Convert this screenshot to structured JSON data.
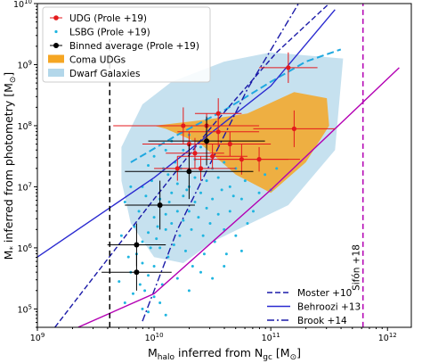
{
  "chart_data": {
    "type": "scatter",
    "xlabel": "M_halo inferred from N_gc [M⊙]",
    "ylabel": "M* inferred from photometry [M⊙]",
    "xscale": "log",
    "yscale": "log",
    "xlim": [
      1000000000.0,
      1600000000000.0
    ],
    "ylim": [
      50000.0,
      10000000000.0
    ],
    "x_ticks": [
      {
        "value": 1000000000.0,
        "base": "10",
        "exp": "9"
      },
      {
        "value": 10000000000.0,
        "base": "10",
        "exp": "10"
      },
      {
        "value": 100000000000.0,
        "base": "10",
        "exp": "11"
      },
      {
        "value": 1000000000000.0,
        "base": "10",
        "exp": "12"
      }
    ],
    "y_ticks": [
      {
        "value": 100000.0,
        "base": "10",
        "exp": "5"
      },
      {
        "value": 1000000.0,
        "base": "10",
        "exp": "6"
      },
      {
        "value": 10000000.0,
        "base": "10",
        "exp": "7"
      },
      {
        "value": 100000000.0,
        "base": "10",
        "exp": "8"
      },
      {
        "value": 1000000000.0,
        "base": "10",
        "exp": "9"
      },
      {
        "value": 10000000000.0,
        "base": "10",
        "exp": "10"
      }
    ],
    "legend_upper": {
      "position": "upper-left",
      "entries": [
        "UDG (Prole +19)",
        "LSBG (Prole +19)",
        "Binned average (Prole +19)",
        "Coma UDGs",
        "Dwarf Galaxies"
      ]
    },
    "legend_lower": {
      "position": "lower-right",
      "entries": [
        "Moster +10",
        "Behroozi +13",
        "Brook +14"
      ]
    },
    "annotation": "Sifón +18",
    "colors": {
      "udg": "#e41a1c",
      "lsbg": "#1fb5e0",
      "binned": "#000000",
      "coma": "#f5a623",
      "dwarf": "#b3d7ea",
      "lsbg_trend": "#1fa8e0",
      "relations": "#1a1aa8",
      "magenta": "#b300b3"
    },
    "dwarf_region": [
      [
        9.72,
        7.65
      ],
      [
        9.9,
        8.35
      ],
      [
        10.15,
        8.72
      ],
      [
        10.6,
        9.05
      ],
      [
        11.0,
        9.2
      ],
      [
        11.62,
        9.1
      ],
      [
        11.55,
        7.6
      ],
      [
        11.15,
        6.7
      ],
      [
        10.5,
        6.1
      ],
      [
        10.25,
        5.75
      ],
      [
        10.0,
        5.85
      ],
      [
        9.8,
        6.4
      ],
      [
        9.72,
        7.1
      ]
    ],
    "coma_region": [
      [
        10.0,
        8.0
      ],
      [
        10.45,
        8.1
      ],
      [
        10.8,
        8.2
      ],
      [
        11.2,
        8.55
      ],
      [
        11.48,
        8.45
      ],
      [
        11.5,
        8.0
      ],
      [
        11.3,
        7.4
      ],
      [
        11.0,
        6.9
      ],
      [
        10.7,
        7.2
      ],
      [
        10.4,
        7.7
      ],
      [
        10.1,
        7.95
      ]
    ],
    "lsbg_trend": [
      [
        9.8,
        7.4
      ],
      [
        10.2,
        7.85
      ],
      [
        10.6,
        8.25
      ],
      [
        11.0,
        8.72
      ],
      [
        11.3,
        9.05
      ],
      [
        11.6,
        9.25
      ]
    ],
    "relations": [
      {
        "name": "Moster +10",
        "style": "dashed",
        "color": "#1a1aa8",
        "points": [
          [
            9.15,
            4.7
          ],
          [
            10.0,
            6.8
          ],
          [
            10.5,
            8.0
          ],
          [
            11.05,
            9.2
          ],
          [
            11.5,
            10.0
          ]
        ]
      },
      {
        "name": "Behroozi +13",
        "style": "solid",
        "color": "#2a2ad0",
        "points": [
          [
            9.0,
            5.85
          ],
          [
            10.0,
            7.15
          ],
          [
            11.0,
            8.65
          ],
          [
            11.55,
            9.9
          ]
        ]
      },
      {
        "name": "Brook +14",
        "style": "dashdot",
        "color": "#1a1aa8",
        "points": [
          [
            9.9,
            4.8
          ],
          [
            10.2,
            6.3
          ],
          [
            10.8,
            8.6
          ],
          [
            11.3,
            10.2
          ]
        ]
      },
      {
        "name": "magenta",
        "style": "solid",
        "color": "#b300b3",
        "points": [
          [
            9.35,
            4.7
          ],
          [
            10.0,
            5.25
          ],
          [
            11.0,
            6.95
          ],
          [
            12.1,
            8.95
          ]
        ]
      }
    ],
    "vlines": [
      {
        "x": 9.62,
        "color": "#000000",
        "style": "dashed",
        "ymin": 4.7,
        "ymax": 9.4
      },
      {
        "x": 11.79,
        "color": "#b300b3",
        "style": "dashed",
        "ymin": 4.7,
        "ymax": 10.0
      }
    ],
    "udg_points": [
      {
        "x": 11.15,
        "y": 8.95,
        "xerr": 0.25,
        "yerr": 0.25
      },
      {
        "x": 10.25,
        "y": 8.0,
        "xerr": 0.6,
        "yerr": 0.3
      },
      {
        "x": 10.45,
        "y": 8.0,
        "xerr": 0.45,
        "yerr": 0.2
      },
      {
        "x": 10.55,
        "y": 7.9,
        "xerr": 0.35,
        "yerr": 0.25
      },
      {
        "x": 10.3,
        "y": 7.7,
        "xerr": 0.4,
        "yerr": 0.2
      },
      {
        "x": 10.65,
        "y": 7.7,
        "xerr": 0.35,
        "yerr": 0.2
      },
      {
        "x": 10.5,
        "y": 7.5,
        "xerr": 0.3,
        "yerr": 0.2
      },
      {
        "x": 10.4,
        "y": 7.3,
        "xerr": 0.3,
        "yerr": 0.2
      },
      {
        "x": 10.75,
        "y": 7.45,
        "xerr": 0.4,
        "yerr": 0.25
      },
      {
        "x": 10.9,
        "y": 7.45,
        "xerr": 0.35,
        "yerr": 0.2
      },
      {
        "x": 11.2,
        "y": 7.95,
        "xerr": 0.35,
        "yerr": 0.3
      },
      {
        "x": 10.55,
        "y": 8.2,
        "xerr": 0.2,
        "yerr": 0.25
      },
      {
        "x": 10.2,
        "y": 7.3,
        "xerr": 0.2,
        "yerr": 0.2
      },
      {
        "x": 10.35,
        "y": 7.55,
        "xerr": 0.25,
        "yerr": 0.25
      }
    ],
    "binned_points": [
      {
        "x": 10.45,
        "y": 7.75,
        "xerr": 0.5,
        "yerr": 0.4
      },
      {
        "x": 10.3,
        "y": 7.25,
        "xerr": 0.55,
        "yerr": 0.45
      },
      {
        "x": 10.05,
        "y": 6.7,
        "xerr": 0.3,
        "yerr": 0.4
      },
      {
        "x": 9.85,
        "y": 6.05,
        "xerr": 0.25,
        "yerr": 0.35
      },
      {
        "x": 9.85,
        "y": 5.6,
        "xerr": 0.3,
        "yerr": 0.3
      }
    ],
    "lsbg_points": [
      [
        9.7,
        5.45
      ],
      [
        9.75,
        5.1
      ],
      [
        9.8,
        5.6
      ],
      [
        9.82,
        5.25
      ],
      [
        9.85,
        5.9
      ],
      [
        9.88,
        5.4
      ],
      [
        9.9,
        6.1
      ],
      [
        9.9,
        5.75
      ],
      [
        9.92,
        5.3
      ],
      [
        9.95,
        6.25
      ],
      [
        9.95,
        5.55
      ],
      [
        9.97,
        6.0
      ],
      [
        10.0,
        6.5
      ],
      [
        10.0,
        5.7
      ],
      [
        10.02,
        6.15
      ],
      [
        10.05,
        6.8
      ],
      [
        10.05,
        6.0
      ],
      [
        10.07,
        5.4
      ],
      [
        10.1,
        6.55
      ],
      [
        10.1,
        6.3
      ],
      [
        10.12,
        5.85
      ],
      [
        10.15,
        6.9
      ],
      [
        10.15,
        6.4
      ],
      [
        10.17,
        6.05
      ],
      [
        10.2,
        7.05
      ],
      [
        10.2,
        6.6
      ],
      [
        10.22,
        6.2
      ],
      [
        10.25,
        6.85
      ],
      [
        10.25,
        6.45
      ],
      [
        10.27,
        5.95
      ],
      [
        10.3,
        7.0
      ],
      [
        10.3,
        6.6
      ],
      [
        10.32,
        6.3
      ],
      [
        10.35,
        6.75
      ],
      [
        10.35,
        7.15
      ],
      [
        10.38,
        6.5
      ],
      [
        10.4,
        6.9
      ],
      [
        10.42,
        6.2
      ],
      [
        10.45,
        6.65
      ],
      [
        10.45,
        7.1
      ],
      [
        10.48,
        6.4
      ],
      [
        10.5,
        6.8
      ],
      [
        10.52,
        6.1
      ],
      [
        10.55,
        6.55
      ],
      [
        10.6,
        6.3
      ],
      [
        10.62,
        5.9
      ],
      [
        10.65,
        6.6
      ],
      [
        10.7,
        6.2
      ],
      [
        10.75,
        5.95
      ],
      [
        10.8,
        6.4
      ],
      [
        10.0,
        5.2
      ],
      [
        9.95,
        4.95
      ],
      [
        10.05,
        5.1
      ],
      [
        9.78,
        5.85
      ],
      [
        9.83,
        6.35
      ],
      [
        9.87,
        6.6
      ],
      [
        9.93,
        6.85
      ],
      [
        9.98,
        7.1
      ],
      [
        10.08,
        7.3
      ],
      [
        10.12,
        7.2
      ],
      [
        10.18,
        7.4
      ],
      [
        10.23,
        7.3
      ],
      [
        9.9,
        7.0
      ],
      [
        9.95,
        7.35
      ],
      [
        10.0,
        7.5
      ],
      [
        10.1,
        7.6
      ],
      [
        10.15,
        7.75
      ],
      [
        10.25,
        7.6
      ],
      [
        10.3,
        7.85
      ],
      [
        10.35,
        7.45
      ],
      [
        10.4,
        7.65
      ],
      [
        10.45,
        7.9
      ],
      [
        10.5,
        7.3
      ],
      [
        10.55,
        7.15
      ],
      [
        10.6,
        7.4
      ],
      [
        10.65,
        7.0
      ],
      [
        10.7,
        7.3
      ],
      [
        10.75,
        6.8
      ],
      [
        10.85,
        6.6
      ],
      [
        10.9,
        6.9
      ],
      [
        9.75,
        6.75
      ],
      [
        9.8,
        7.0
      ],
      [
        9.72,
        6.2
      ],
      [
        10.03,
        6.35
      ],
      [
        10.13,
        6.75
      ],
      [
        10.28,
        6.95
      ],
      [
        10.33,
        5.7
      ],
      [
        10.43,
        5.9
      ],
      [
        10.58,
        6.95
      ],
      [
        10.68,
        6.85
      ],
      [
        10.78,
        7.1
      ],
      [
        10.95,
        7.2
      ],
      [
        11.0,
        6.95
      ],
      [
        11.05,
        7.3
      ],
      [
        10.2,
        5.5
      ],
      [
        10.4,
        5.6
      ],
      [
        10.6,
        5.7
      ],
      [
        10.3,
        5.3
      ],
      [
        10.5,
        5.5
      ],
      [
        9.9,
        5.0
      ],
      [
        10.1,
        4.9
      ]
    ]
  }
}
